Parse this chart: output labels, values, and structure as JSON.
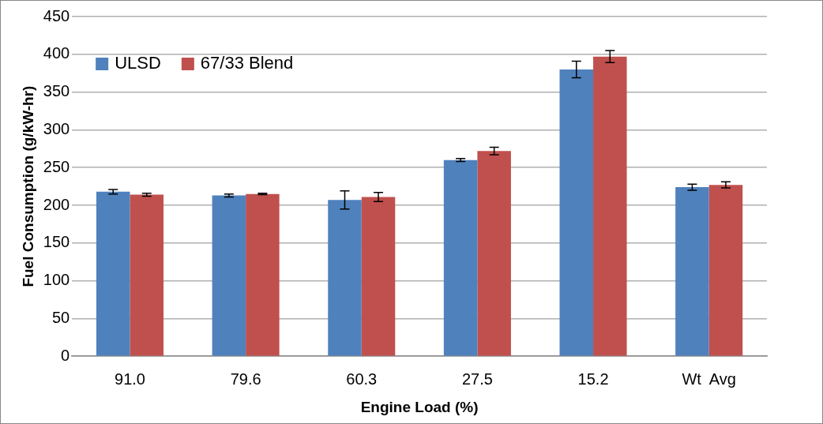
{
  "chart_data": {
    "type": "bar",
    "xlabel": "Engine Load (%)",
    "ylabel": "Fuel Consumption (g/kW-hr)",
    "categories": [
      "91.0",
      "79.6",
      "60.3",
      "27.5",
      "15.2",
      "Wt  Avg"
    ],
    "series": [
      {
        "name": "ULSD",
        "color": "#4f81bd",
        "values": [
          218,
          213,
          207,
          260,
          380,
          224
        ],
        "errors": [
          3,
          2,
          12,
          2,
          11,
          4
        ]
      },
      {
        "name": "67/33 Blend",
        "color": "#c0504d",
        "values": [
          214,
          215,
          211,
          272,
          397,
          227
        ],
        "errors": [
          2,
          1,
          6,
          5,
          8,
          4
        ]
      }
    ],
    "ylim": [
      0,
      450
    ],
    "yticks": [
      0,
      50,
      100,
      150,
      200,
      250,
      300,
      350,
      400,
      450
    ],
    "grid": "y",
    "legend": "top left"
  }
}
